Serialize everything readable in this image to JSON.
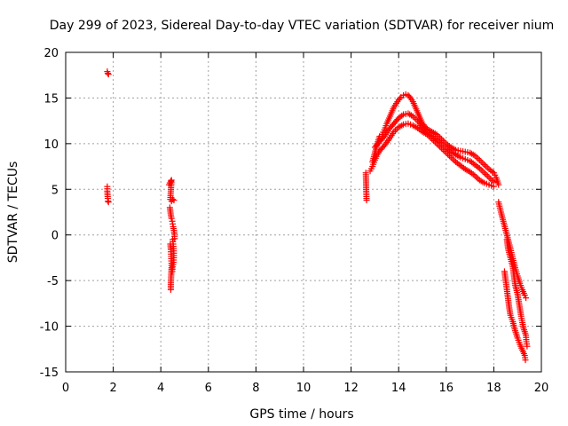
{
  "chart_data": {
    "type": "scatter",
    "title": "Day 299 of 2023, Sidereal Day-to-day VTEC variation (SDTVAR) for receiver nium",
    "xlabel": "GPS time / hours",
    "ylabel": "SDTVAR / TECUs",
    "xlim": [
      0,
      20
    ],
    "ylim": [
      -15,
      20
    ],
    "xticks": [
      0,
      2,
      4,
      6,
      8,
      10,
      12,
      14,
      16,
      18,
      20
    ],
    "yticks": [
      -15,
      -10,
      -5,
      0,
      5,
      10,
      15,
      20
    ],
    "grid": true,
    "marker": "+",
    "color": "#ff0000",
    "segments": [
      {
        "name": "cluster-1.7h-top",
        "points": [
          [
            1.75,
            17.9
          ],
          [
            1.77,
            17.7
          ],
          [
            1.8,
            17.6
          ]
        ]
      },
      {
        "name": "cluster-1.7h-mid",
        "points": [
          [
            1.75,
            5.3
          ],
          [
            1.75,
            4.8
          ],
          [
            1.76,
            4.4
          ],
          [
            1.77,
            4.0
          ],
          [
            1.78,
            3.7
          ],
          [
            1.8,
            3.6
          ]
        ]
      },
      {
        "name": "column-4.4h-a",
        "points": [
          [
            4.35,
            5.5
          ],
          [
            4.38,
            5.7
          ],
          [
            4.42,
            5.9
          ],
          [
            4.45,
            6.0
          ],
          [
            4.4,
            3.9
          ],
          [
            4.45,
            3.7
          ],
          [
            4.5,
            3.9
          ],
          [
            4.55,
            3.8
          ]
        ]
      },
      {
        "name": "column-4.4h-b",
        "points": [
          [
            4.38,
            3.0
          ],
          [
            4.4,
            2.6
          ],
          [
            4.42,
            2.2
          ],
          [
            4.45,
            1.8
          ],
          [
            4.48,
            1.5
          ],
          [
            4.5,
            1.2
          ],
          [
            4.52,
            0.9
          ],
          [
            4.55,
            0.5
          ],
          [
            4.57,
            0.1
          ],
          [
            4.58,
            -0.4
          ]
        ]
      },
      {
        "name": "column-4.4h-c",
        "points": [
          [
            4.4,
            -1.0
          ],
          [
            4.42,
            -1.6
          ],
          [
            4.43,
            -2.1
          ],
          [
            4.44,
            -2.6
          ],
          [
            4.45,
            -3.1
          ],
          [
            4.45,
            -3.6
          ],
          [
            4.44,
            -4.2
          ],
          [
            4.43,
            -4.8
          ],
          [
            4.42,
            -5.4
          ],
          [
            4.42,
            -6.0
          ]
        ]
      },
      {
        "name": "column-4.4h-d",
        "points": [
          [
            4.5,
            -0.5
          ],
          [
            4.52,
            -1.0
          ],
          [
            4.54,
            -1.5
          ],
          [
            4.55,
            -2.0
          ],
          [
            4.55,
            -2.5
          ],
          [
            4.53,
            -3.0
          ],
          [
            4.5,
            -3.5
          ],
          [
            4.48,
            -4.0
          ]
        ]
      },
      {
        "name": "pair-12.6h",
        "points": [
          [
            12.62,
            6.8
          ],
          [
            12.64,
            4.6
          ],
          [
            12.65,
            3.8
          ]
        ]
      },
      {
        "name": "arc-lower",
        "points": [
          [
            12.8,
            7.0
          ],
          [
            12.9,
            7.5
          ],
          [
            13.0,
            8.2
          ],
          [
            13.1,
            8.8
          ],
          [
            13.2,
            9.2
          ],
          [
            13.4,
            9.8
          ],
          [
            13.6,
            10.5
          ],
          [
            13.8,
            11.3
          ],
          [
            14.0,
            11.8
          ],
          [
            14.2,
            12.1
          ],
          [
            14.4,
            12.2
          ],
          [
            14.6,
            12.0
          ],
          [
            14.8,
            11.7
          ],
          [
            15.0,
            11.3
          ],
          [
            15.2,
            11.0
          ],
          [
            15.4,
            10.5
          ],
          [
            15.6,
            10.0
          ],
          [
            15.8,
            9.5
          ],
          [
            16.0,
            9.0
          ],
          [
            16.2,
            8.5
          ],
          [
            16.4,
            8.0
          ],
          [
            16.6,
            7.6
          ],
          [
            16.8,
            7.2
          ],
          [
            17.0,
            6.9
          ],
          [
            17.2,
            6.5
          ],
          [
            17.4,
            6.0
          ],
          [
            17.6,
            5.7
          ],
          [
            17.8,
            5.5
          ],
          [
            18.0,
            5.3
          ]
        ]
      },
      {
        "name": "arc-upper",
        "points": [
          [
            12.9,
            8.0
          ],
          [
            13.0,
            9.0
          ],
          [
            13.1,
            10.0
          ],
          [
            13.2,
            10.8
          ],
          [
            13.3,
            11.0
          ],
          [
            13.4,
            11.5
          ],
          [
            13.5,
            12.2
          ],
          [
            13.6,
            12.8
          ],
          [
            13.7,
            13.4
          ],
          [
            13.8,
            14.0
          ],
          [
            13.9,
            14.4
          ],
          [
            14.0,
            14.8
          ],
          [
            14.1,
            15.1
          ],
          [
            14.2,
            15.3
          ],
          [
            14.3,
            15.4
          ],
          [
            14.4,
            15.3
          ],
          [
            14.5,
            15.0
          ],
          [
            14.6,
            14.6
          ],
          [
            14.7,
            14.0
          ],
          [
            14.8,
            13.4
          ],
          [
            14.9,
            12.8
          ],
          [
            15.0,
            12.2
          ],
          [
            15.2,
            11.6
          ],
          [
            15.4,
            11.3
          ],
          [
            15.6,
            11.0
          ],
          [
            15.8,
            10.5
          ],
          [
            16.0,
            10.0
          ],
          [
            16.2,
            9.6
          ],
          [
            16.4,
            9.3
          ],
          [
            16.6,
            9.2
          ],
          [
            16.8,
            9.1
          ],
          [
            17.0,
            9.0
          ],
          [
            17.2,
            8.7
          ],
          [
            17.4,
            8.2
          ],
          [
            17.6,
            7.7
          ],
          [
            17.8,
            7.2
          ],
          [
            18.0,
            6.8
          ],
          [
            18.1,
            6.3
          ],
          [
            18.2,
            5.5
          ]
        ]
      },
      {
        "name": "arc-middle",
        "points": [
          [
            13.0,
            9.6
          ],
          [
            13.2,
            10.2
          ],
          [
            13.4,
            10.8
          ],
          [
            13.6,
            11.6
          ],
          [
            13.8,
            12.2
          ],
          [
            14.0,
            12.8
          ],
          [
            14.2,
            13.2
          ],
          [
            14.4,
            13.3
          ],
          [
            14.6,
            13.0
          ],
          [
            14.8,
            12.5
          ],
          [
            15.0,
            11.8
          ],
          [
            15.2,
            11.2
          ],
          [
            15.4,
            10.8
          ],
          [
            15.6,
            10.4
          ],
          [
            15.8,
            10.0
          ],
          [
            16.0,
            9.5
          ],
          [
            16.2,
            9.1
          ],
          [
            16.4,
            8.8
          ],
          [
            16.6,
            8.5
          ],
          [
            16.8,
            8.3
          ],
          [
            17.0,
            8.1
          ],
          [
            17.2,
            7.7
          ],
          [
            17.4,
            7.3
          ],
          [
            17.6,
            6.8
          ],
          [
            17.8,
            6.3
          ],
          [
            18.0,
            5.8
          ]
        ]
      },
      {
        "name": "tail-a",
        "points": [
          [
            18.2,
            3.6
          ],
          [
            18.3,
            2.5
          ],
          [
            18.4,
            1.5
          ],
          [
            18.5,
            0.5
          ],
          [
            18.6,
            -0.5
          ],
          [
            18.7,
            -1.5
          ],
          [
            18.8,
            -2.6
          ],
          [
            18.9,
            -3.6
          ],
          [
            19.0,
            -4.5
          ],
          [
            19.1,
            -5.3
          ],
          [
            19.2,
            -6.0
          ],
          [
            19.3,
            -6.6
          ],
          [
            19.35,
            -6.9
          ]
        ]
      },
      {
        "name": "tail-b",
        "points": [
          [
            18.45,
            -4.0
          ],
          [
            18.5,
            -5.0
          ],
          [
            18.55,
            -6.0
          ],
          [
            18.6,
            -7.0
          ],
          [
            18.65,
            -8.0
          ],
          [
            18.7,
            -8.8
          ],
          [
            18.8,
            -9.5
          ],
          [
            18.9,
            -10.5
          ],
          [
            19.0,
            -11.3
          ],
          [
            19.1,
            -12.0
          ],
          [
            19.2,
            -12.6
          ],
          [
            19.3,
            -13.2
          ],
          [
            19.33,
            -13.7
          ]
        ]
      },
      {
        "name": "tail-c",
        "points": [
          [
            18.55,
            -0.5
          ],
          [
            18.6,
            -1.5
          ],
          [
            18.7,
            -2.5
          ],
          [
            18.8,
            -3.5
          ],
          [
            18.85,
            -4.5
          ],
          [
            18.9,
            -5.5
          ],
          [
            19.0,
            -6.5
          ],
          [
            19.05,
            -7.3
          ],
          [
            19.1,
            -8.1
          ],
          [
            19.15,
            -8.9
          ],
          [
            19.2,
            -9.6
          ],
          [
            19.25,
            -10.2
          ],
          [
            19.3,
            -10.6
          ],
          [
            19.35,
            -11.0
          ],
          [
            19.37,
            -11.7
          ],
          [
            19.4,
            -12.2
          ]
        ]
      }
    ]
  }
}
